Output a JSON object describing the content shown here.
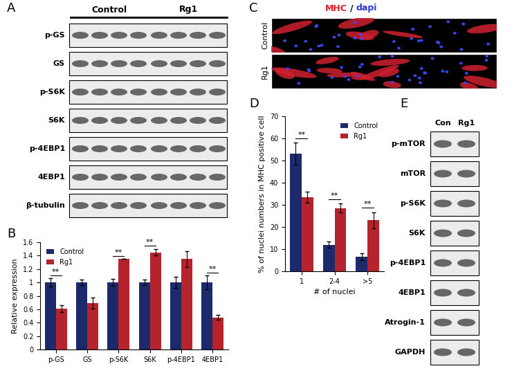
{
  "panel_labels": [
    "A",
    "B",
    "C",
    "D",
    "E"
  ],
  "panel_a": {
    "groups": [
      "Control",
      "Rg1"
    ],
    "rows": [
      "p-GS",
      "GS",
      "p-S6K",
      "S6K",
      "p-4EBP1",
      "4EBP1",
      "β-tubulin"
    ]
  },
  "chart_data": [
    {
      "type": "bar",
      "ylabel": "Relative expression",
      "categories": [
        "p-GS",
        "GS",
        "p-S6K",
        "S6K",
        "p-4EBP1",
        "4EBP1"
      ],
      "series": [
        {
          "name": "Control",
          "color": "#1c2a6b",
          "values": [
            1,
            1,
            1,
            1,
            1,
            1
          ],
          "errors": [
            0.06,
            0.04,
            0.05,
            0.04,
            0.08,
            0.1
          ]
        },
        {
          "name": "Rg1",
          "color": "#b5242c",
          "values": [
            0.61,
            0.69,
            1.35,
            1.45,
            1.35,
            0.48
          ],
          "errors": [
            0.05,
            0.08,
            0,
            0.05,
            0.12,
            0.04
          ]
        }
      ],
      "ylim": [
        0,
        1.6
      ],
      "yticks": [
        0,
        0.2,
        0.4,
        0.6,
        0.8,
        1,
        1.2,
        1.4,
        1.6
      ],
      "legend": "upper left",
      "annotations": [
        {
          "category": "p-GS",
          "text": "**"
        },
        {
          "category": "p-S6K",
          "text": "**"
        },
        {
          "category": "S6K",
          "text": "**"
        },
        {
          "category": "4EBP1",
          "text": "**"
        }
      ]
    },
    {
      "type": "bar",
      "xlabel": "# of nuclei",
      "ylabel": "% of nuclei numbers in MHC positive cell",
      "categories": [
        "1",
        "2-4",
        ">5"
      ],
      "series": [
        {
          "name": "Control",
          "color": "#1c2a6b",
          "values": [
            53,
            12,
            6.5
          ],
          "errors": [
            5,
            1.5,
            1.5
          ]
        },
        {
          "name": "Rg1",
          "color": "#b5242c",
          "values": [
            33.5,
            28.5,
            23
          ],
          "errors": [
            2.5,
            2,
            3.5
          ]
        }
      ],
      "ylim": [
        0,
        70
      ],
      "yticks": [
        0,
        10,
        20,
        30,
        40,
        50,
        60,
        70
      ],
      "legend": "upper right",
      "annotations": [
        {
          "category": "1",
          "text": "**"
        },
        {
          "category": "2-4",
          "text": "**"
        },
        {
          "category": ">5",
          "text": "**"
        }
      ]
    }
  ],
  "panel_c": {
    "stain": [
      {
        "text": "MHC",
        "color": "#d81e2a"
      },
      {
        "text": "/",
        "color": "#000000"
      },
      {
        "text": "dapi",
        "color": "#2a3ad0"
      }
    ],
    "rows": [
      "Control",
      "Rg1"
    ]
  },
  "panel_e": {
    "columns": [
      "Con",
      "Rg1"
    ],
    "rows": [
      "p-mTOR",
      "mTOR",
      "p-S6K",
      "S6K",
      "p-4EBP1",
      "4EBP1",
      "Atrogin-1",
      "GAPDH"
    ]
  }
}
